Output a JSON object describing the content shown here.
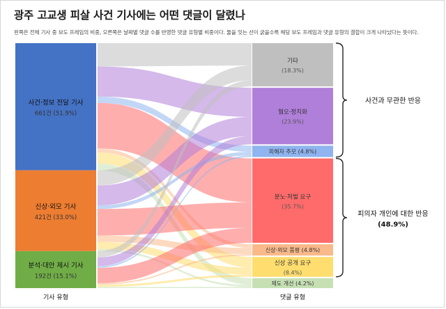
{
  "header": {
    "title": "광주 고교생 피살 사건 기사에는 어떤 댓글이 달렸나",
    "subtitle": "왼쪽은 전체 기사 중 보도 프레임의 비중, 오른쪽은 날짜별 댓글 수를 반영한 댓글 유형별 비중이다. 둘을 잇는 선이 굵을수록 해당 보도 프레임과 댓글 유형의 결합이 크게 나타났다는 뜻이다."
  },
  "chart_data": {
    "type": "sankey",
    "left_axis_label": "기사 유형",
    "right_axis_label": "댓글 유형",
    "sources": [
      {
        "id": "s1",
        "name": "사건·정보 전달 기사",
        "count_label": "661건 (51.9%)",
        "count": 661,
        "percent": 51.9,
        "color": "#4472c4"
      },
      {
        "id": "s2",
        "name": "신상·외모 기사",
        "count_label": "421건 (33.0%)",
        "count": 421,
        "percent": 33.0,
        "color": "#ed7d31"
      },
      {
        "id": "s3",
        "name": "분석·대안 제시 기사",
        "count_label": "192건 (15.1%)",
        "count": 192,
        "percent": 15.1,
        "color": "#70ad47"
      }
    ],
    "targets": [
      {
        "id": "t1",
        "name": "기타",
        "pct_label": "(18.3%)",
        "percent": 18.3,
        "color": "#bfbfbf",
        "text_color": "#333333"
      },
      {
        "id": "t2",
        "name": "혐오·정치화",
        "pct_label": "(23.9%)",
        "percent": 23.9,
        "color": "#b07fd9",
        "text_color": "#333333"
      },
      {
        "id": "t3",
        "name": "피해자 추모",
        "pct_label": "(4.8%)",
        "percent": 4.8,
        "color": "#8fb4ef",
        "text_color": "#333333"
      },
      {
        "id": "t4",
        "name": "분노·처벌 요구",
        "pct_label": "(35.7%)",
        "percent": 35.7,
        "color": "#ff6b6b",
        "text_color": "#333333"
      },
      {
        "id": "t5",
        "name": "신상·외모 품평",
        "pct_label": "(4.8%)",
        "percent": 4.8,
        "color": "#f9b98a",
        "text_color": "#333333"
      },
      {
        "id": "t6",
        "name": "신상 공개 요구",
        "pct_label": "(8.4%)",
        "percent": 8.4,
        "color": "#ffdd6e",
        "text_color": "#333333"
      },
      {
        "id": "t7",
        "name": "제도 개선",
        "pct_label": "(4.2%)",
        "percent": 4.2,
        "color": "#c6e0b4",
        "text_color": "#333333"
      }
    ],
    "links": [
      {
        "source": "s1",
        "target": "t1",
        "value": 9.5
      },
      {
        "source": "s1",
        "target": "t2",
        "value": 12.3
      },
      {
        "source": "s1",
        "target": "t3",
        "value": 2.6
      },
      {
        "source": "s1",
        "target": "t4",
        "value": 18.6
      },
      {
        "source": "s1",
        "target": "t5",
        "value": 1.6
      },
      {
        "source": "s1",
        "target": "t6",
        "value": 4.5
      },
      {
        "source": "s1",
        "target": "t7",
        "value": 2.8
      },
      {
        "source": "s2",
        "target": "t1",
        "value": 6.2
      },
      {
        "source": "s2",
        "target": "t2",
        "value": 8.1
      },
      {
        "source": "s2",
        "target": "t3",
        "value": 1.5
      },
      {
        "source": "s2",
        "target": "t4",
        "value": 10.8
      },
      {
        "source": "s2",
        "target": "t5",
        "value": 2.6
      },
      {
        "source": "s2",
        "target": "t6",
        "value": 3.0
      },
      {
        "source": "s2",
        "target": "t7",
        "value": 0.8
      },
      {
        "source": "s3",
        "target": "t1",
        "value": 2.6
      },
      {
        "source": "s3",
        "target": "t2",
        "value": 3.5
      },
      {
        "source": "s3",
        "target": "t3",
        "value": 0.7
      },
      {
        "source": "s3",
        "target": "t4",
        "value": 6.3
      },
      {
        "source": "s3",
        "target": "t5",
        "value": 0.6
      },
      {
        "source": "s3",
        "target": "t6",
        "value": 0.9
      },
      {
        "source": "s3",
        "target": "t7",
        "value": 0.5
      }
    ],
    "groups": [
      {
        "id": "g1",
        "label": "사건과 무관한 반응",
        "sub_label": "",
        "targets": [
          "t1",
          "t2",
          "t3"
        ]
      },
      {
        "id": "g2",
        "label": "피의자 개인에 대한 반응",
        "sub_label": "(48.9%)",
        "targets": [
          "t4",
          "t5",
          "t6"
        ]
      }
    ]
  }
}
